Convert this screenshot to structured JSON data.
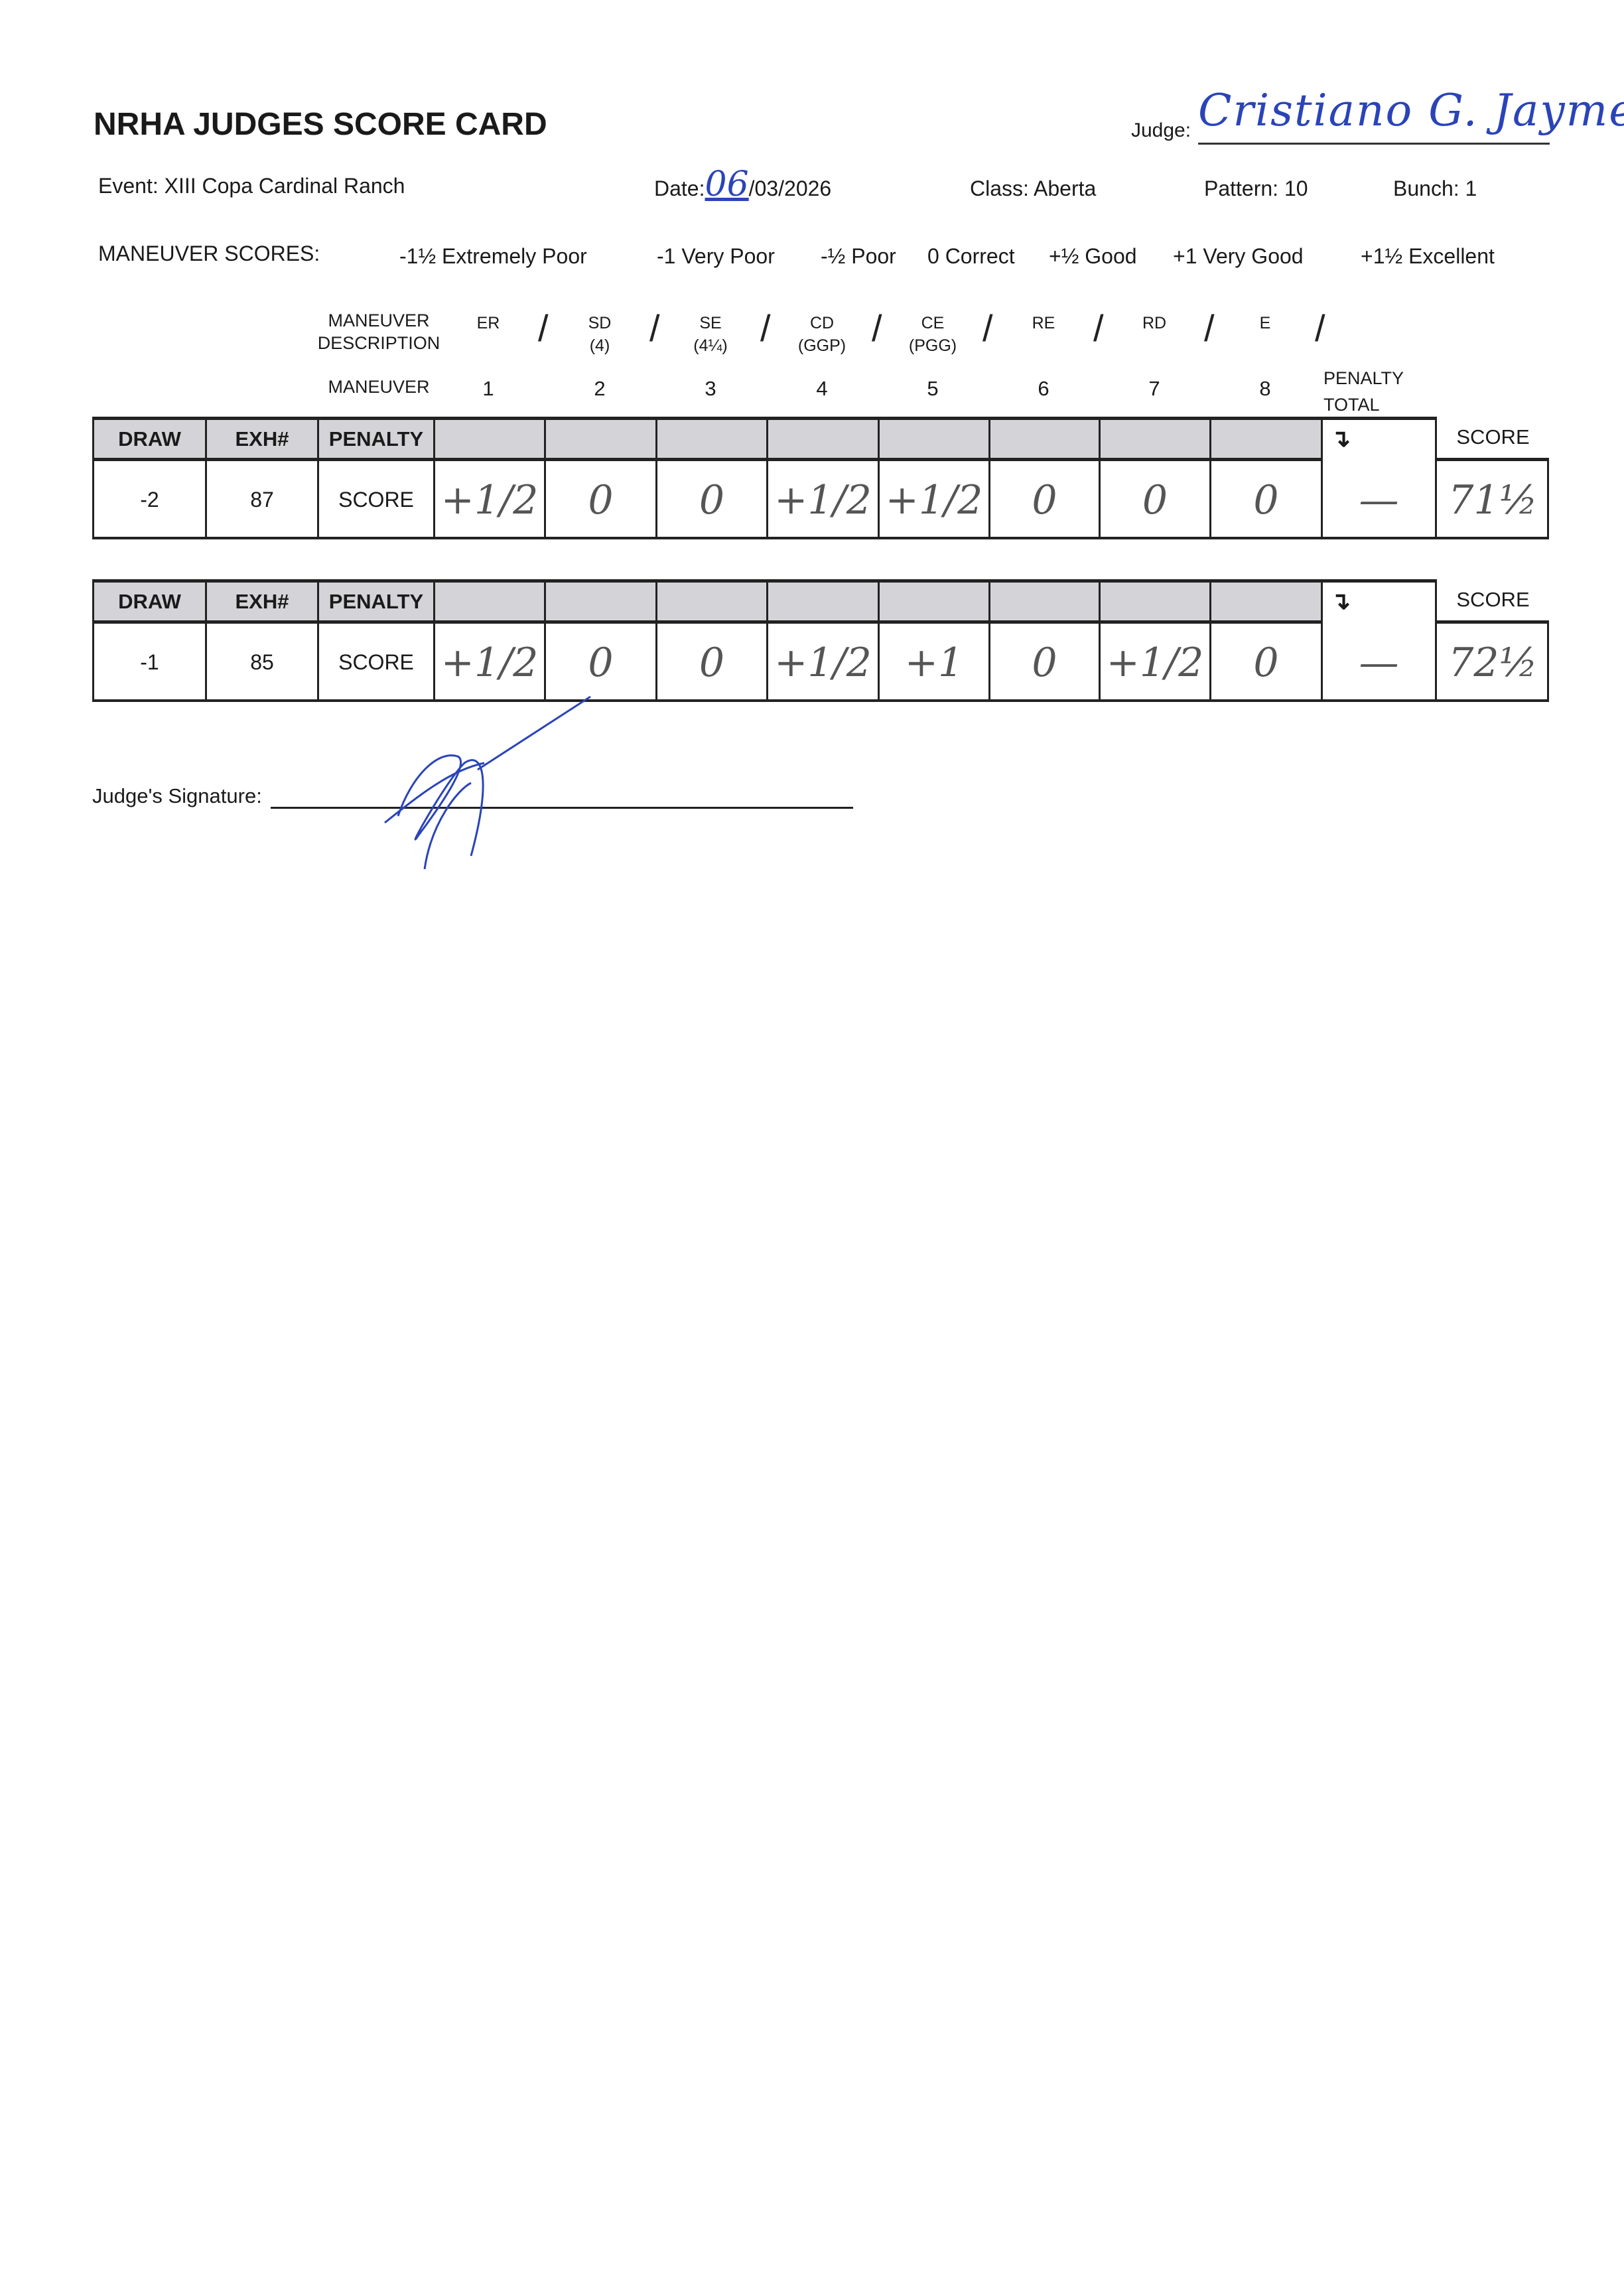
{
  "header": {
    "title": "NRHA JUDGES SCORE CARD",
    "judge_label": "Judge:",
    "judge_name": "Cristiano G. Jayme"
  },
  "info": {
    "event": "Event: XIII Copa Cardinal Ranch",
    "date_label": "Date:",
    "date_day": "06",
    "date_rest": "/03/2026",
    "class": "Class: Aberta",
    "pattern": "Pattern: 10",
    "bunch": "Bunch: 1"
  },
  "maneuver_scores": {
    "label": "MANEUVER SCORES:",
    "items": [
      "-1½ Extremely Poor",
      "-1 Very Poor",
      "-½ Poor",
      "0 Correct",
      "+½ Good",
      "+1 Very Good",
      "+1½ Excellent"
    ]
  },
  "maneuver_header": {
    "description_label": [
      "MANEUVER",
      "DESCRIPTION"
    ],
    "maneuver_label": "MANEUVER",
    "penalty_total": [
      "PENALTY",
      "TOTAL"
    ],
    "descriptions": [
      [
        "ER",
        ""
      ],
      [
        "SD",
        "(4)"
      ],
      [
        "SE",
        "(4¼)"
      ],
      [
        "CD",
        "(GGP)"
      ],
      [
        "CE",
        "(PGG)"
      ],
      [
        "RE",
        ""
      ],
      [
        "RD",
        ""
      ],
      [
        "E",
        ""
      ]
    ],
    "numbers": [
      "1",
      "2",
      "3",
      "4",
      "5",
      "6",
      "7",
      "8"
    ]
  },
  "columns": {
    "draw": "DRAW",
    "exh": "EXH#",
    "penalty": "PENALTY",
    "score_row": "SCORE",
    "score": "SCORE",
    "arrow": "↴"
  },
  "entries": [
    {
      "draw": "-2",
      "exh": "87",
      "maneuvers": [
        "+1/2",
        "0",
        "0",
        "+1/2",
        "+1/2",
        "0",
        "0",
        "0"
      ],
      "penalty_total": "—",
      "score": "71½"
    },
    {
      "draw": "-1",
      "exh": "85",
      "maneuvers": [
        "+1/2",
        "0",
        "0",
        "+1/2",
        "+1",
        "0",
        "+1/2",
        "0"
      ],
      "penalty_total": "—",
      "score": "72½"
    }
  ],
  "signature": {
    "label": "Judge's Signature:"
  },
  "colors": {
    "ink": "#2a44b8",
    "pencil": "#555555",
    "header_fill": "#d4d4d8"
  }
}
